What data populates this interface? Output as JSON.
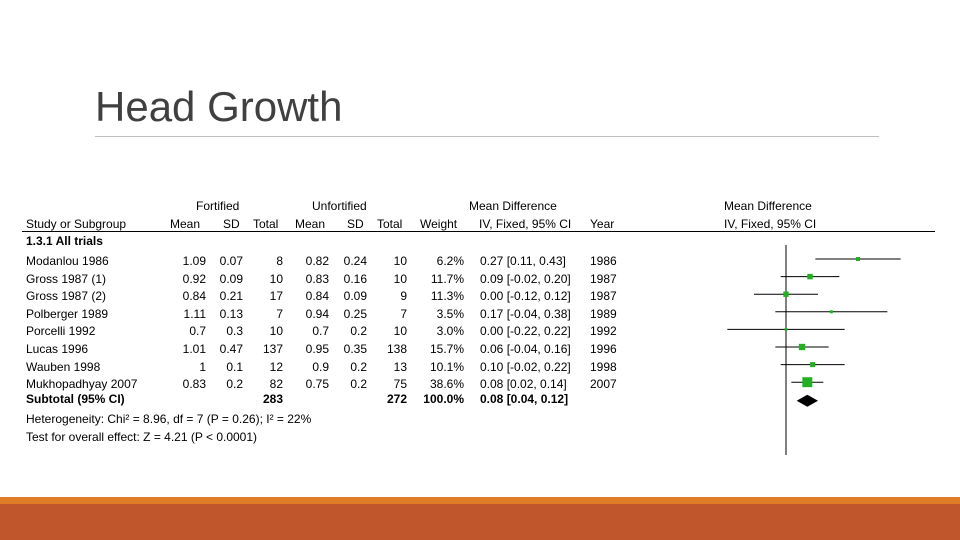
{
  "title": "Head Growth",
  "colors": {
    "marker": "#22b022",
    "line": "#000000",
    "footer_orange": "#e07b28",
    "footer_rust": "#c0562c"
  },
  "chart_data": {
    "type": "forest",
    "headers": {
      "group_fortified": "Fortified",
      "group_unfortified": "Unfortified",
      "group_md": "Mean Difference",
      "group_md_plot": "Mean Difference",
      "study": "Study or Subgroup",
      "f_mean": "Mean",
      "f_sd": "SD",
      "f_total": "Total",
      "u_mean": "Mean",
      "u_sd": "SD",
      "u_total": "Total",
      "weight": "Weight",
      "md_method": "IV, Fixed, 95% CI",
      "year": "Year",
      "md_plot_method": "IV, Fixed, 95% CI"
    },
    "subgroup": "1.3.1 All trials",
    "studies": [
      {
        "study": "Modanlou 1986",
        "f_mean": "1.09",
        "f_sd": "0.07",
        "f_total": "8",
        "u_mean": "0.82",
        "u_sd": "0.24",
        "u_total": "10",
        "weight": "6.2%",
        "ci_text": "0.27 [0.11, 0.43]",
        "year": "1986",
        "md": 0.27,
        "lo": 0.11,
        "hi": 0.43,
        "w": 6.2
      },
      {
        "study": "Gross 1987 (1)",
        "f_mean": "0.92",
        "f_sd": "0.09",
        "f_total": "10",
        "u_mean": "0.83",
        "u_sd": "0.16",
        "u_total": "10",
        "weight": "11.7%",
        "ci_text": "0.09 [-0.02, 0.20]",
        "year": "1987",
        "md": 0.09,
        "lo": -0.02,
        "hi": 0.2,
        "w": 11.7
      },
      {
        "study": "Gross 1987 (2)",
        "f_mean": "0.84",
        "f_sd": "0.21",
        "f_total": "17",
        "u_mean": "0.84",
        "u_sd": "0.09",
        "u_total": "9",
        "weight": "11.3%",
        "ci_text": "0.00 [-0.12, 0.12]",
        "year": "1987",
        "md": 0.0,
        "lo": -0.12,
        "hi": 0.12,
        "w": 11.3
      },
      {
        "study": "Polberger 1989",
        "f_mean": "1.11",
        "f_sd": "0.13",
        "f_total": "7",
        "u_mean": "0.94",
        "u_sd": "0.25",
        "u_total": "7",
        "weight": "3.5%",
        "ci_text": "0.17 [-0.04, 0.38]",
        "year": "1989",
        "md": 0.17,
        "lo": -0.04,
        "hi": 0.38,
        "w": 3.5
      },
      {
        "study": "Porcelli 1992",
        "f_mean": "0.7",
        "f_sd": "0.3",
        "f_total": "10",
        "u_mean": "0.7",
        "u_sd": "0.2",
        "u_total": "10",
        "weight": "3.0%",
        "ci_text": "0.00 [-0.22, 0.22]",
        "year": "1992",
        "md": 0.0,
        "lo": -0.22,
        "hi": 0.22,
        "w": 3.0
      },
      {
        "study": "Lucas 1996",
        "f_mean": "1.01",
        "f_sd": "0.47",
        "f_total": "137",
        "u_mean": "0.95",
        "u_sd": "0.35",
        "u_total": "138",
        "weight": "15.7%",
        "ci_text": "0.06 [-0.04, 0.16]",
        "year": "1996",
        "md": 0.06,
        "lo": -0.04,
        "hi": 0.16,
        "w": 15.7
      },
      {
        "study": "Wauben 1998",
        "f_mean": "1",
        "f_sd": "0.1",
        "f_total": "12",
        "u_mean": "0.9",
        "u_sd": "0.2",
        "u_total": "13",
        "weight": "10.1%",
        "ci_text": "0.10 [-0.02, 0.22]",
        "year": "1998",
        "md": 0.1,
        "lo": -0.02,
        "hi": 0.22,
        "w": 10.1
      },
      {
        "study": "Mukhopadhyay 2007",
        "f_mean": "0.83",
        "f_sd": "0.2",
        "f_total": "82",
        "u_mean": "0.75",
        "u_sd": "0.2",
        "u_total": "75",
        "weight": "38.6%",
        "ci_text": "0.08 [0.02, 0.14]",
        "year": "2007",
        "md": 0.08,
        "lo": 0.02,
        "hi": 0.14,
        "w": 38.6
      }
    ],
    "subtotal": {
      "label": "Subtotal (95% CI)",
      "f_total": "283",
      "u_total": "272",
      "weight": "100.0%",
      "ci_text": "0.08 [0.04, 0.12]",
      "md": 0.08,
      "lo": 0.04,
      "hi": 0.12
    },
    "heterogeneity": "Heterogeneity: Chi² = 8.96, df = 7 (P = 0.26); I² = 22%",
    "overall_effect": "Test for overall effect: Z = 4.21 (P < 0.0001)",
    "x_range": [
      -0.36,
      0.54
    ]
  }
}
